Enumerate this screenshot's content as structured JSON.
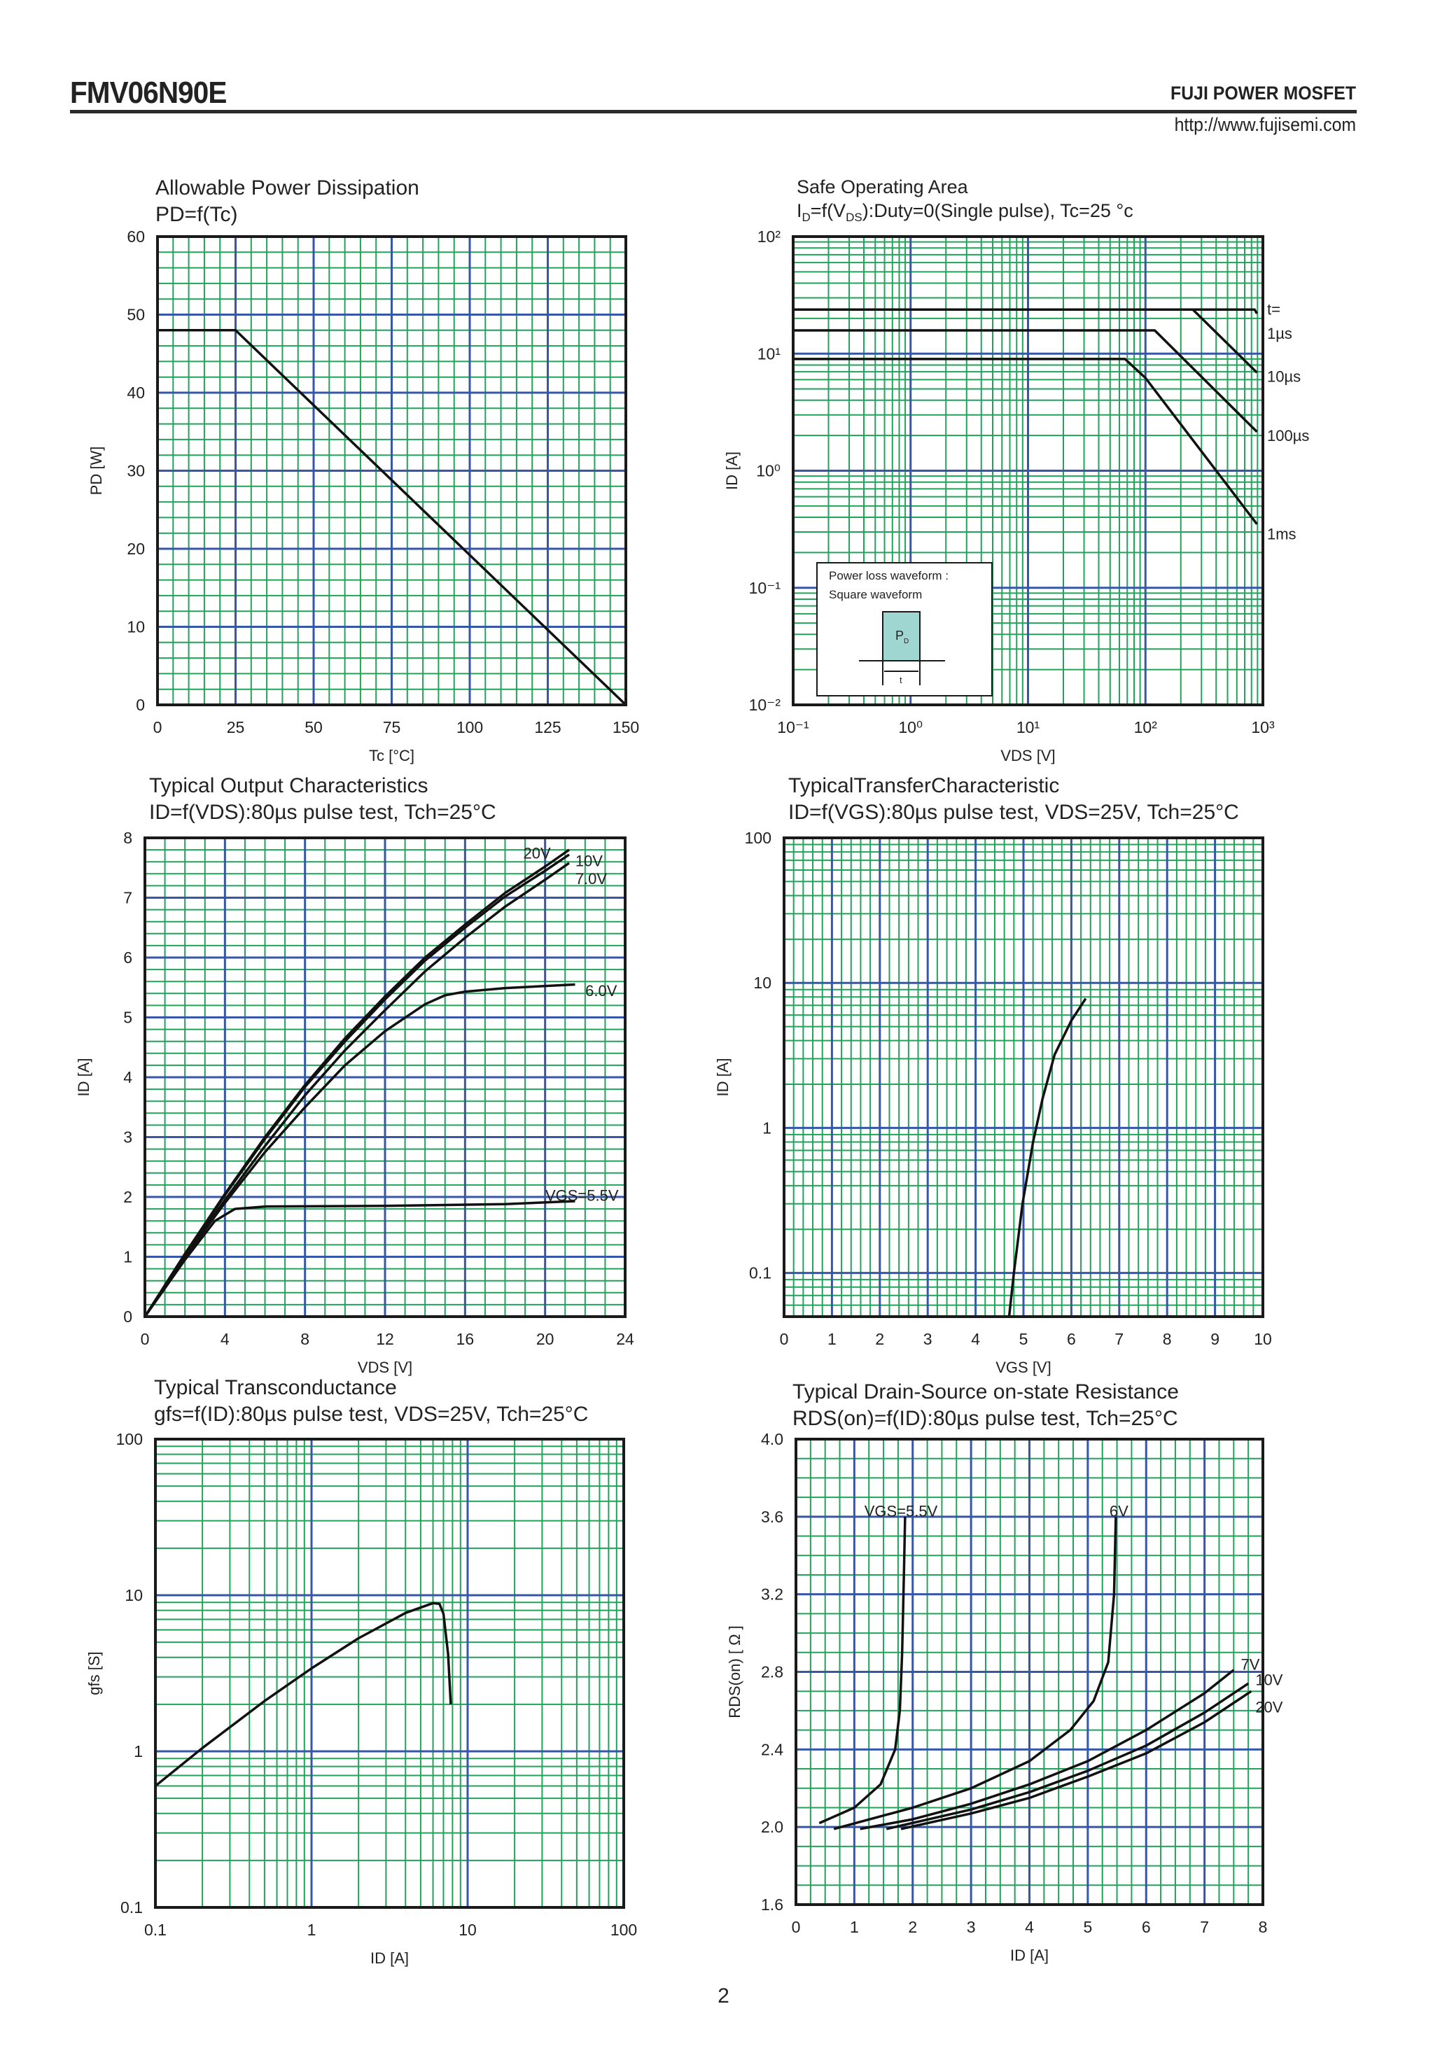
{
  "header": {
    "part_number": "FMV06N90E",
    "brand": "FUJI POWER MOSFET",
    "url": "http://www.fujisemi.com"
  },
  "footer": {
    "page_number": "2"
  },
  "colors": {
    "grid_minor": "#21a35a",
    "grid_major": "#3656a8",
    "curve": "#111111",
    "frame": "#1a1a1a",
    "inset_fill": "#9fd6d2"
  },
  "chart_data": [
    {
      "type": "line",
      "title": "Allowable Power Dissipation",
      "subtitle": "PD=f(Tc)",
      "xlabel": "Tc [°C]",
      "ylabel": "PD [W]",
      "xscale": "linear",
      "yscale": "linear",
      "xlim": [
        0,
        150
      ],
      "ylim": [
        0,
        60
      ],
      "grid": true,
      "xticks": [
        0,
        25,
        50,
        75,
        100,
        125,
        150
      ],
      "xtick_labels": [
        "0",
        "25",
        "50",
        "75",
        "100",
        "125",
        "150"
      ],
      "yticks": [
        0,
        10,
        20,
        30,
        40,
        50,
        60
      ],
      "ytick_labels": [
        "0",
        "10",
        "20",
        "30",
        "40",
        "50",
        "60"
      ],
      "series": [
        {
          "points": [
            [
              0,
              48
            ],
            [
              25,
              48
            ],
            [
              150,
              0
            ]
          ]
        }
      ],
      "annotations": []
    },
    {
      "type": "line",
      "title": "Safe Operating Area",
      "subtitle_parts": [
        "I",
        "D",
        "=f(V",
        "DS",
        "):Duty=0(Single pulse), Tc=25 °c"
      ],
      "xlabel": "VDS [V]",
      "ylabel": "ID [A]",
      "xscale": "log",
      "yscale": "log",
      "xlim": [
        0.1,
        1000
      ],
      "ylim": [
        0.01,
        100
      ],
      "grid": true,
      "xticks": [
        0.1,
        1,
        10,
        100,
        1000
      ],
      "xtick_labels": [
        "10⁻¹",
        "10⁰",
        "10¹",
        "10²",
        "10³"
      ],
      "yticks": [
        0.01,
        0.1,
        1,
        10,
        100
      ],
      "ytick_labels": [
        "10⁻²",
        "10⁻¹",
        "10⁰",
        "10¹",
        "10²"
      ],
      "series": [
        {
          "name": "1µs",
          "points": [
            [
              0.1,
              23.8
            ],
            [
              850,
              23.8
            ],
            [
              890,
              22
            ]
          ]
        },
        {
          "name": "10µs",
          "points": [
            [
              253,
              23.8
            ],
            [
              890,
              6.9
            ]
          ]
        },
        {
          "name": "100µs",
          "points": [
            [
              0.1,
              15.8
            ],
            [
              120,
              15.8
            ],
            [
              890,
              2.15
            ]
          ]
        },
        {
          "name": "1ms",
          "points": [
            [
              0.1,
              9.0
            ],
            [
              67,
              9.0
            ],
            [
              100,
              6.2
            ],
            [
              890,
              0.35
            ]
          ]
        }
      ],
      "annotations": [
        {
          "text": "t=",
          "x": 1000,
          "y": 24
        },
        {
          "text": "1µs",
          "x": 1000,
          "y": 15
        },
        {
          "text": "10µs",
          "x": 1000,
          "y": 6.4
        },
        {
          "text": "100µs",
          "x": 1000,
          "y": 2.0
        },
        {
          "text": "1ms",
          "x": 1000,
          "y": 0.29
        }
      ],
      "inset": {
        "line1": "Power loss waveform :",
        "line2": "Square waveform",
        "pulse_label": "P",
        "pulse_sub": "D",
        "width_label": "t"
      }
    },
    {
      "type": "line",
      "title": "Typical Output Characteristics",
      "subtitle": "ID=f(VDS):80µs pulse test, Tch=25°C",
      "xlabel": "VDS [V]",
      "ylabel": "ID [A]",
      "xscale": "linear",
      "yscale": "linear",
      "xlim": [
        0,
        24
      ],
      "ylim": [
        0,
        8
      ],
      "grid": true,
      "xticks": [
        0,
        4,
        8,
        12,
        16,
        20,
        24
      ],
      "xtick_labels": [
        "0",
        "4",
        "8",
        "12",
        "16",
        "20",
        "24"
      ],
      "yticks": [
        0,
        1,
        2,
        3,
        4,
        5,
        6,
        7,
        8
      ],
      "ytick_labels": [
        "0",
        "1",
        "2",
        "3",
        "4",
        "5",
        "6",
        "7",
        "8"
      ],
      "series": [
        {
          "name": "20V",
          "points": [
            [
              0,
              0
            ],
            [
              2,
              1.05
            ],
            [
              4,
              2.05
            ],
            [
              6,
              3.0
            ],
            [
              8,
              3.87
            ],
            [
              10,
              4.65
            ],
            [
              12,
              5.35
            ],
            [
              14,
              6.0
            ],
            [
              16,
              6.55
            ],
            [
              18,
              7.08
            ],
            [
              20,
              7.52
            ],
            [
              21.2,
              7.8
            ]
          ]
        },
        {
          "name": "10V",
          "points": [
            [
              0,
              0
            ],
            [
              2,
              1.04
            ],
            [
              4,
              2.03
            ],
            [
              6,
              2.97
            ],
            [
              8,
              3.84
            ],
            [
              10,
              4.6
            ],
            [
              12,
              5.3
            ],
            [
              14,
              5.95
            ],
            [
              16,
              6.5
            ],
            [
              18,
              7.02
            ],
            [
              20,
              7.45
            ],
            [
              21.2,
              7.72
            ]
          ]
        },
        {
          "name": "7.0V",
          "points": [
            [
              0,
              0
            ],
            [
              2,
              1.0
            ],
            [
              4,
              1.95
            ],
            [
              6,
              2.85
            ],
            [
              8,
              3.7
            ],
            [
              10,
              4.45
            ],
            [
              12,
              5.12
            ],
            [
              14,
              5.77
            ],
            [
              16,
              6.33
            ],
            [
              18,
              6.85
            ],
            [
              20,
              7.3
            ],
            [
              21.2,
              7.58
            ]
          ]
        },
        {
          "name": "6.0V",
          "points": [
            [
              0,
              0
            ],
            [
              2,
              1.0
            ],
            [
              4,
              1.9
            ],
            [
              6,
              2.75
            ],
            [
              8,
              3.5
            ],
            [
              10,
              4.2
            ],
            [
              12,
              4.77
            ],
            [
              14,
              5.22
            ],
            [
              15,
              5.37
            ],
            [
              16,
              5.43
            ],
            [
              18,
              5.49
            ],
            [
              21.5,
              5.55
            ]
          ]
        },
        {
          "name": "VGS=5.5V",
          "points": [
            [
              0,
              0
            ],
            [
              2,
              0.95
            ],
            [
              3.5,
              1.6
            ],
            [
              4.5,
              1.8
            ],
            [
              6,
              1.84
            ],
            [
              12,
              1.85
            ],
            [
              18,
              1.88
            ],
            [
              21.5,
              1.93
            ]
          ]
        }
      ],
      "annotations": [
        {
          "text": "20V",
          "x": 18.7,
          "y": 7.75
        },
        {
          "text": "10V",
          "x": 21.3,
          "y": 7.62
        },
        {
          "text": "7.0V",
          "x": 21.3,
          "y": 7.32
        },
        {
          "text": "6.0V",
          "x": 21.8,
          "y": 5.45
        },
        {
          "text": "VGS=5.5V",
          "x": 19.8,
          "y": 2.03
        }
      ]
    },
    {
      "type": "line",
      "title": "TypicalTransferCharacteristic",
      "subtitle": "ID=f(VGS):80µs pulse test, VDS=25V, Tch=25°C",
      "xlabel": "VGS [V]",
      "ylabel": "ID [A]",
      "xscale": "linear",
      "yscale": "log",
      "xlim": [
        0,
        10
      ],
      "ylim": [
        0.05,
        100
      ],
      "grid": true,
      "xticks": [
        0,
        1,
        2,
        3,
        4,
        5,
        6,
        7,
        8,
        9,
        10
      ],
      "xtick_labels": [
        "0",
        "1",
        "2",
        "3",
        "4",
        "5",
        "6",
        "7",
        "8",
        "9",
        "10"
      ],
      "yticks": [
        0.1,
        1,
        10,
        100
      ],
      "ytick_labels": [
        "0.1",
        "1",
        "10",
        "100"
      ],
      "series": [
        {
          "points": [
            [
              4.7,
              0.05
            ],
            [
              4.8,
              0.1
            ],
            [
              4.98,
              0.3
            ],
            [
              5.2,
              0.8
            ],
            [
              5.4,
              1.6
            ],
            [
              5.65,
              3.2
            ],
            [
              6.0,
              5.5
            ],
            [
              6.3,
              7.8
            ]
          ]
        }
      ],
      "annotations": []
    },
    {
      "type": "line",
      "title": "Typical Transconductance",
      "subtitle": "gfs=f(ID):80µs pulse test, VDS=25V, Tch=25°C",
      "xlabel": "ID [A]",
      "ylabel": "gfs [S]",
      "xscale": "log",
      "yscale": "log",
      "xlim": [
        0.1,
        100
      ],
      "ylim": [
        0.1,
        100
      ],
      "grid": true,
      "xticks": [
        0.1,
        1,
        10,
        100
      ],
      "xtick_labels": [
        "0.1",
        "1",
        "10",
        "100"
      ],
      "yticks": [
        0.1,
        1,
        10,
        100
      ],
      "ytick_labels": [
        "0.1",
        "1",
        "10",
        "100"
      ],
      "series": [
        {
          "points": [
            [
              0.1,
              0.6
            ],
            [
              0.2,
              1.05
            ],
            [
              0.5,
              2.1
            ],
            [
              1,
              3.4
            ],
            [
              2,
              5.3
            ],
            [
              4,
              7.7
            ],
            [
              6,
              8.9
            ],
            [
              6.6,
              8.8
            ],
            [
              7,
              7.6
            ],
            [
              7.5,
              4.2
            ],
            [
              7.8,
              2.0
            ]
          ]
        }
      ],
      "annotations": []
    },
    {
      "type": "line",
      "title": "Typical Drain-Source on-state Resistance",
      "subtitle": "RDS(on)=f(ID):80µs pulse test, Tch=25°C",
      "xlabel": "ID [A]",
      "ylabel": "RDS(on) [ Ω ]",
      "xscale": "linear",
      "yscale": "linear",
      "xlim": [
        0,
        8
      ],
      "ylim": [
        1.6,
        4.0
      ],
      "grid": true,
      "xticks": [
        0,
        1,
        2,
        3,
        4,
        5,
        6,
        7,
        8
      ],
      "xtick_labels": [
        "0",
        "1",
        "2",
        "3",
        "4",
        "5",
        "6",
        "7",
        "8"
      ],
      "yticks": [
        1.6,
        2.0,
        2.4,
        2.8,
        3.2,
        3.6,
        4.0
      ],
      "ytick_labels": [
        "1.6",
        "2.0",
        "2.4",
        "2.8",
        "3.2",
        "3.6",
        "4.0"
      ],
      "series": [
        {
          "name": "VGS=5.5V",
          "points": [
            [
              0.4,
              2.02
            ],
            [
              1.0,
              2.1
            ],
            [
              1.45,
              2.22
            ],
            [
              1.7,
              2.4
            ],
            [
              1.78,
              2.6
            ],
            [
              1.82,
              2.9
            ],
            [
              1.85,
              3.3
            ],
            [
              1.87,
              3.6
            ]
          ]
        },
        {
          "name": "6V",
          "points": [
            [
              0.65,
              1.99
            ],
            [
              2,
              2.1
            ],
            [
              3,
              2.2
            ],
            [
              4,
              2.34
            ],
            [
              4.7,
              2.5
            ],
            [
              5.1,
              2.65
            ],
            [
              5.35,
              2.85
            ],
            [
              5.45,
              3.2
            ],
            [
              5.48,
              3.6
            ]
          ]
        },
        {
          "name": "7V",
          "points": [
            [
              1.1,
              1.99
            ],
            [
              2,
              2.04
            ],
            [
              3,
              2.12
            ],
            [
              4,
              2.22
            ],
            [
              5,
              2.34
            ],
            [
              6,
              2.5
            ],
            [
              7,
              2.69
            ],
            [
              7.5,
              2.81
            ]
          ]
        },
        {
          "name": "10V",
          "points": [
            [
              1.55,
              1.99
            ],
            [
              3,
              2.09
            ],
            [
              4,
              2.18
            ],
            [
              5,
              2.29
            ],
            [
              6,
              2.42
            ],
            [
              7,
              2.59
            ],
            [
              7.75,
              2.74
            ]
          ]
        },
        {
          "name": "20V",
          "points": [
            [
              1.8,
              1.99
            ],
            [
              3,
              2.07
            ],
            [
              4,
              2.15
            ],
            [
              5,
              2.26
            ],
            [
              6,
              2.38
            ],
            [
              7,
              2.54
            ],
            [
              7.8,
              2.7
            ]
          ]
        }
      ],
      "annotations": [
        {
          "text": "VGS=5.5V",
          "x": 1.1,
          "y": 3.63
        },
        {
          "text": "6V",
          "x": 5.3,
          "y": 3.63
        },
        {
          "text": "7V",
          "x": 7.55,
          "y": 2.84
        },
        {
          "text": "10V",
          "x": 7.8,
          "y": 2.76
        },
        {
          "text": "20V",
          "x": 7.8,
          "y": 2.62
        }
      ]
    }
  ]
}
